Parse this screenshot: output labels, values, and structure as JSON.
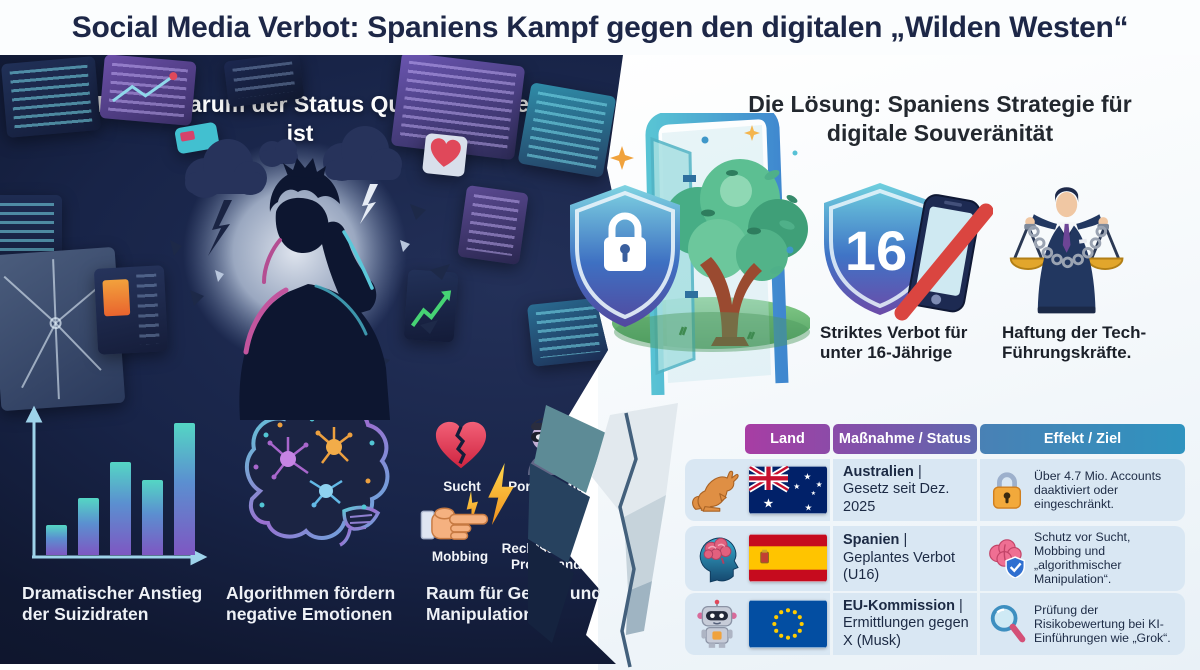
{
  "title": "Social Media Verbot: Spaniens Kampf gegen den digitalen „Wilden Westen“",
  "colors": {
    "panel_navy": "#141d3a",
    "header_gradient_left": "#a83da4",
    "header_gradient_right": "#2f93bf",
    "table_row_bg": "#d9e7f3",
    "ban_red": "#d94540",
    "bar_gradient_top": "#54d6c4",
    "bar_gradient_bottom": "#7e57c2"
  },
  "left_panel": {
    "heading": "Die Krise: Warum der Status Quo gescheitert ist",
    "bar_chart": {
      "type": "bar",
      "values": [
        0.2,
        0.38,
        0.62,
        0.5,
        0.88
      ],
      "title": "Dramatischer Anstieg der Suizidraten",
      "axes_labeled": false
    },
    "risk_icons": [
      {
        "icon": "broken-heart-icon",
        "label": "Sucht"
      },
      {
        "icon": "burglar-icon",
        "label": "Pornografie"
      },
      {
        "icon": "pointing-hand-icon",
        "label": "Mobbing"
      },
      {
        "icon": "raised-fist-icon",
        "label": "Rechtsextreme Propaganda"
      }
    ],
    "captions": [
      "Dramatischer Anstieg der Suizidraten",
      "Algorithmen fördern negative Emotionen",
      "Raum für Gewalt und Manipulation"
    ]
  },
  "right_panel": {
    "heading": "Die Lösung: Spaniens Strategie für digitale Souveränität",
    "measures": [
      {
        "icon": "shield-16-phone-ban-icon",
        "badge": "16",
        "label": "Striktes Verbot für unter 16-Jährige"
      },
      {
        "icon": "executive-chained-scales-icon",
        "label": "Haftung der Tech-Führungskräfte."
      }
    ],
    "table": {
      "headers": [
        "Land",
        "Maßnahme / Status",
        "Effekt / Ziel"
      ],
      "rows": [
        {
          "country_icon": "kangaroo-icon",
          "flag": "australia-flag",
          "country": "Australien",
          "status": "| Gesetz seit Dez. 2025",
          "effect_icon": "padlock-icon",
          "effect": "Über 4.7 Mio. Accounts daaktiviert oder eingeschränkt."
        },
        {
          "country_icon": "head-brain-icon",
          "flag": "spain-flag",
          "country": "Spanien",
          "status": "| Geplantes Verbot (U16)",
          "effect_icon": "brain-shield-icon",
          "effect": "Schutz vor Sucht, Mobbing und „algorithmischer Manipulation“."
        },
        {
          "country_icon": "robot-icon",
          "flag": "eu-flag",
          "country": "EU-Kommission",
          "status": "| Ermittlungen gegen X (Musk)",
          "effect_icon": "magnifier-icon",
          "effect": "Prüfung der Risikobewertung bei KI-Einführungen wie „Grok“."
        }
      ]
    }
  }
}
